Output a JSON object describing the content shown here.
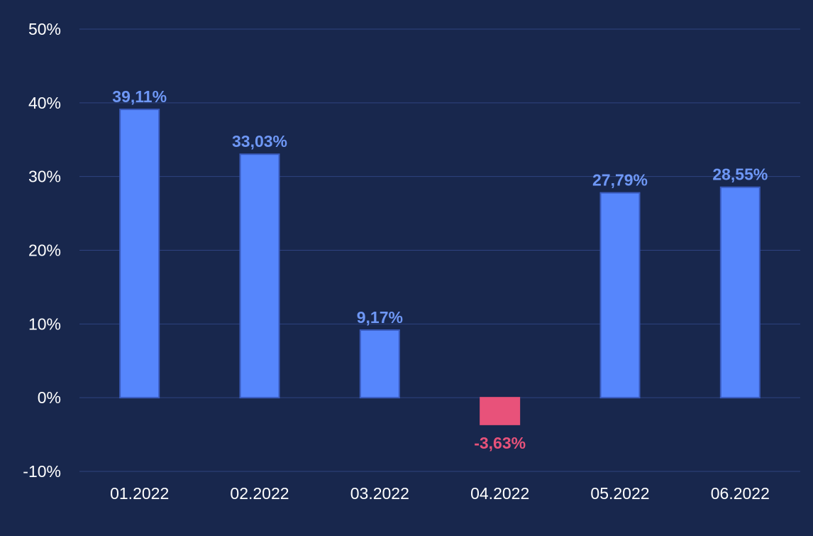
{
  "chart_data": {
    "type": "bar",
    "categories": [
      "01.2022",
      "02.2022",
      "03.2022",
      "04.2022",
      "05.2022",
      "06.2022"
    ],
    "values": [
      39.11,
      33.03,
      9.17,
      -3.63,
      27.79,
      28.55
    ],
    "data_labels": [
      "39,11%",
      "33,03%",
      "9,17%",
      "-3,63%",
      "27,79%",
      "28,55%"
    ],
    "y_ticks": [
      50,
      40,
      30,
      20,
      10,
      0,
      -10
    ],
    "y_tick_labels": [
      "50%",
      "40%",
      "30%",
      "20%",
      "10%",
      "0%",
      "-10%"
    ],
    "ylim": [
      -10,
      50
    ],
    "title": "",
    "xlabel": "",
    "ylabel": "",
    "grid": true,
    "legend": "none",
    "colors": {
      "background": "#18274d",
      "positive_bar": "#5686fc",
      "negative_bar": "#e8527a",
      "positive_label": "#6e97f5",
      "negative_label": "#e8527a",
      "gridline": "#2e4380",
      "bar_stroke": "#3a5bbd",
      "tick_text": "#ffffff"
    }
  }
}
